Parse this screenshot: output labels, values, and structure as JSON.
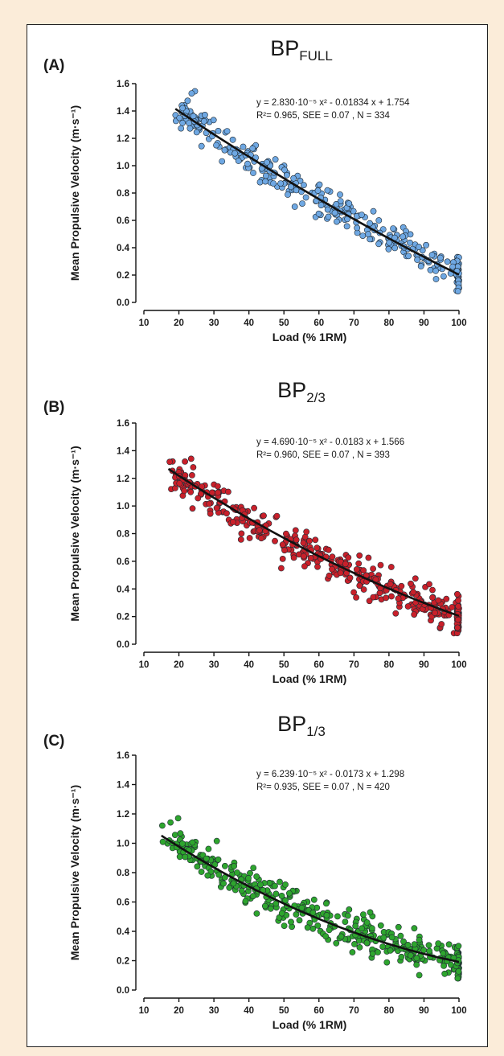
{
  "chart_data": [
    {
      "type": "scatter",
      "panel_label": "(A)",
      "title": "BP",
      "title_subscript": "FULL",
      "xlabel": "Load (% 1RM)",
      "ylabel": "Mean Propulsive Velocity (m·s⁻¹)",
      "xlim": [
        10,
        100
      ],
      "ylim": [
        0,
        1.6
      ],
      "xticks": [
        10,
        20,
        30,
        40,
        50,
        60,
        70,
        80,
        90,
        100
      ],
      "yticks": [
        "0.0",
        "0.2",
        "0.4",
        "0.6",
        "0.8",
        "1.0",
        "1.2",
        "1.4",
        "1.6"
      ],
      "equation_line1": "y = 2.830·10⁻⁵ x² - 0.01834 x + 1.754",
      "equation_line2": "R²= 0.965, SEE = 0.07 , N = 334",
      "fit": {
        "a": 2.83e-05,
        "b": -0.01834,
        "c": 1.754,
        "x_range": [
          19,
          100
        ]
      },
      "n_points": 334,
      "x_range": [
        19,
        100
      ],
      "see": 0.07,
      "marker_color": "#6fa8e3"
    },
    {
      "type": "scatter",
      "panel_label": "(B)",
      "title": "BP",
      "title_subscript": "2/3",
      "xlabel": "Load (% 1RM)",
      "ylabel": "Mean Propulsive Velocity (m·s⁻¹)",
      "xlim": [
        10,
        100
      ],
      "ylim": [
        0,
        1.6
      ],
      "xticks": [
        10,
        20,
        30,
        40,
        50,
        60,
        70,
        80,
        90,
        100
      ],
      "yticks": [
        "0.0",
        "0.2",
        "0.4",
        "0.6",
        "0.8",
        "1.0",
        "1.2",
        "1.4",
        "1.6"
      ],
      "equation_line1": "y = 4.690·10⁻⁵ x² - 0.0183 x + 1.566",
      "equation_line2": "R²= 0.960, SEE = 0.07 , N = 393",
      "fit": {
        "a": 4.69e-05,
        "b": -0.0183,
        "c": 1.566,
        "x_range": [
          17,
          100
        ]
      },
      "n_points": 393,
      "x_range": [
        17,
        100
      ],
      "see": 0.07,
      "marker_color": "#c9202a"
    },
    {
      "type": "scatter",
      "panel_label": "(C)",
      "title": "BP",
      "title_subscript": "1/3",
      "xlabel": "Load (% 1RM)",
      "ylabel": "Mean Propulsive Velocity (m·s⁻¹)",
      "xlim": [
        10,
        100
      ],
      "ylim": [
        0,
        1.6
      ],
      "xticks": [
        10,
        20,
        30,
        40,
        50,
        60,
        70,
        80,
        90,
        100
      ],
      "yticks": [
        "0.0",
        "0.2",
        "0.4",
        "0.6",
        "0.8",
        "1.0",
        "1.2",
        "1.4",
        "1.6"
      ],
      "equation_line1": "y = 6.239·10⁻⁵ x² - 0.0173 x + 1.298",
      "equation_line2": "R²= 0.935, SEE = 0.07 , N = 420",
      "fit": {
        "a": 6.239e-05,
        "b": -0.0173,
        "c": 1.298,
        "x_range": [
          15,
          100
        ]
      },
      "n_points": 420,
      "x_range": [
        15,
        100
      ],
      "see": 0.07,
      "marker_color": "#2ea52e"
    }
  ]
}
